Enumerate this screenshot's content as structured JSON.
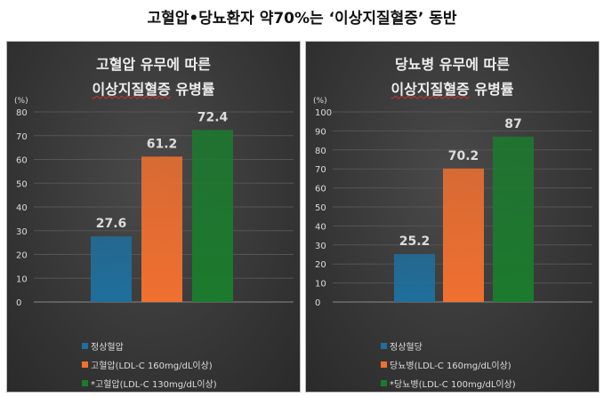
{
  "title": "고혈압•당뇨환자 약70%는 ‘이상지질혈증’ 동반",
  "colors": {
    "blue": "#1f6f9c",
    "orange": "#f07030",
    "green": "#1c7a2e"
  },
  "chart_data": [
    {
      "type": "bar",
      "title_line1": "고혈압 유무에 따른",
      "title_line2a": "이상지질혈증",
      "title_line2b": "유병률",
      "ylabel": "(%)",
      "ylim": [
        0,
        80
      ],
      "yticks": [
        "0",
        "10",
        "20",
        "30",
        "40",
        "50",
        "60",
        "70",
        "80"
      ],
      "categories": [
        "정상혈압",
        "고혈압(LDL-C 160mg/dL이상)",
        "*고혈압(LDL-C 130mg/dL이상)"
      ],
      "values": [
        27.6,
        61.2,
        72.4
      ],
      "labels": [
        "27.6",
        "61.2",
        "72.4"
      ],
      "legend_position": "bottom"
    },
    {
      "type": "bar",
      "title_line1": "당뇨병 유무에 따른",
      "title_line2a": "이상지질혈증",
      "title_line2b": "유병률",
      "ylabel": "(%)",
      "ylim": [
        0,
        100
      ],
      "yticks": [
        "0",
        "10",
        "20",
        "30",
        "40",
        "50",
        "60",
        "70",
        "80",
        "90",
        "100"
      ],
      "categories": [
        "정상혈당",
        "당뇨병(LDL-C 160mg/dL이상)",
        "*당뇨병(LDL-C 100mg/dL이상)"
      ],
      "values": [
        25.2,
        70.2,
        87
      ],
      "labels": [
        "25.2",
        "70.2",
        "87"
      ],
      "legend_position": "bottom"
    }
  ]
}
